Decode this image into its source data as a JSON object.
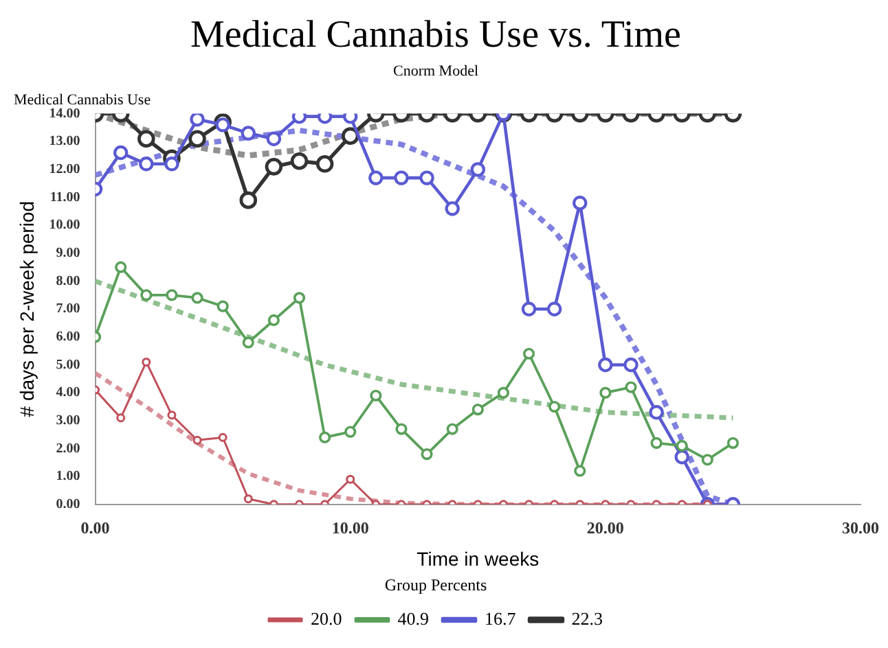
{
  "chart_data": {
    "type": "line",
    "title": "Medical Cannabis Use vs. Time",
    "subtitle": "Cnorm Model",
    "xlabel": "Time in weeks",
    "ylabel": "# days per 2-week period",
    "legend_title": "Group Percents",
    "annotations": [
      "Medical Cannabis Use"
    ],
    "x": [
      0,
      1,
      2,
      3,
      4,
      5,
      6,
      7,
      8,
      9,
      10,
      11,
      12,
      13,
      14,
      15,
      16,
      17,
      18,
      19,
      20,
      21,
      22,
      23,
      24,
      25
    ],
    "xlim": [
      0,
      30
    ],
    "xticks": [
      {
        "value": 0,
        "label": "0.00"
      },
      {
        "value": 10,
        "label": "10.00"
      },
      {
        "value": 20,
        "label": "20.00"
      },
      {
        "value": 30,
        "label": "30.00"
      }
    ],
    "ylim": [
      0,
      14
    ],
    "yticks": [
      {
        "value": 0,
        "label": "0.00"
      },
      {
        "value": 1,
        "label": "1.00"
      },
      {
        "value": 2,
        "label": "2.00"
      },
      {
        "value": 3,
        "label": "3.00"
      },
      {
        "value": 4,
        "label": "4.00"
      },
      {
        "value": 5,
        "label": "5.00"
      },
      {
        "value": 6,
        "label": "6.00"
      },
      {
        "value": 7,
        "label": "7.00"
      },
      {
        "value": 8,
        "label": "8.00"
      },
      {
        "value": 9,
        "label": "9.00"
      },
      {
        "value": 10,
        "label": "10.00"
      },
      {
        "value": 11,
        "label": "11.00"
      },
      {
        "value": 12,
        "label": "12.00"
      },
      {
        "value": 13,
        "label": "13.00"
      },
      {
        "value": 14,
        "label": "14.00"
      }
    ],
    "grid": false,
    "legend": "bottom",
    "marker": "circle",
    "line_style": "solid",
    "series": [
      {
        "name": "20.0",
        "color": "#c0505a",
        "x": [
          0,
          1,
          2,
          3,
          4,
          5,
          6,
          7,
          8,
          9,
          10,
          11,
          12,
          13,
          14,
          15,
          16,
          17,
          18,
          19,
          20,
          21,
          22,
          23,
          24
        ],
        "values": [
          4.1,
          3.1,
          5.1,
          3.2,
          2.3,
          2.4,
          0.2,
          0,
          0,
          0,
          0.9,
          0,
          0,
          0,
          0,
          0,
          0,
          0,
          0,
          0,
          0,
          0,
          0,
          0,
          0
        ]
      },
      {
        "name": "40.9",
        "color": "#5aa05a",
        "values": [
          6.0,
          8.5,
          7.5,
          7.5,
          7.4,
          7.1,
          5.8,
          6.6,
          7.4,
          2.4,
          2.6,
          3.9,
          2.7,
          1.8,
          2.7,
          3.4,
          4.0,
          5.4,
          3.5,
          1.2,
          4.0,
          4.2,
          2.2,
          2.1,
          1.6,
          2.2
        ]
      },
      {
        "name": "16.7",
        "color": "#5a5ad2",
        "values": [
          11.3,
          12.6,
          12.2,
          12.2,
          13.8,
          13.6,
          13.3,
          13.1,
          13.9,
          13.9,
          13.9,
          11.7,
          11.7,
          11.7,
          10.6,
          12.0,
          14.0,
          7.0,
          7.0,
          10.8,
          5.0,
          5.0,
          3.3,
          1.7,
          0,
          0
        ]
      },
      {
        "name": "22.3",
        "color": "#333333",
        "values": [
          14.0,
          14.0,
          13.1,
          12.4,
          13.1,
          13.7,
          10.9,
          12.1,
          12.3,
          12.2,
          13.2,
          14.0,
          14.0,
          14.0,
          14.0,
          14.0,
          14.0,
          14.0,
          14.0,
          14.0,
          14.0,
          14.0,
          14.0,
          14.0,
          14.0,
          14.0
        ]
      },
      {
        "color": "#d89098",
        "line_style": "dashed",
        "marker": "none",
        "x": [
          0,
          2,
          4,
          6,
          8,
          10,
          12,
          15,
          20,
          25
        ],
        "values": [
          4.7,
          3.5,
          2.2,
          1.1,
          0.5,
          0.2,
          0.05,
          0,
          0,
          0
        ]
      },
      {
        "color": "#90c090",
        "line_style": "dashed",
        "marker": "none",
        "x": [
          0,
          3,
          6,
          9,
          12,
          16,
          20,
          25
        ],
        "values": [
          8.0,
          7.0,
          6.0,
          5.0,
          4.3,
          3.8,
          3.3,
          3.1
        ]
      },
      {
        "color": "#8080e0",
        "line_style": "dashed",
        "marker": "none",
        "x": [
          0,
          4,
          8,
          12,
          16,
          18,
          20,
          22,
          24,
          25
        ],
        "values": [
          11.8,
          12.9,
          13.4,
          12.9,
          11.4,
          9.8,
          7.4,
          4.3,
          0.3,
          0
        ]
      },
      {
        "color": "#909090",
        "line_style": "dashed",
        "marker": "none",
        "x": [
          0,
          2,
          4,
          6,
          8,
          10,
          12,
          14,
          25
        ],
        "values": [
          14.0,
          13.4,
          12.8,
          12.5,
          12.7,
          13.3,
          13.8,
          14.0,
          14.0
        ]
      }
    ]
  }
}
